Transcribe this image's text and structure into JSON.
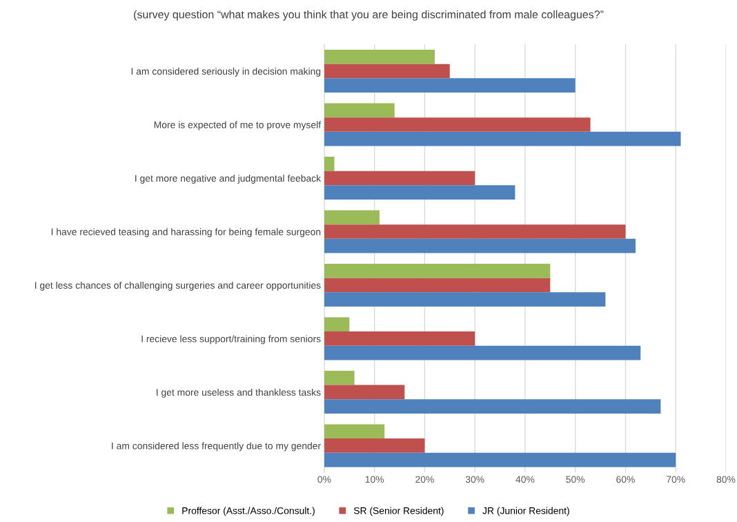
{
  "chart_data": {
    "type": "bar",
    "orientation": "horizontal",
    "title": "(survey question “what makes you think that you are being discriminated from male colleagues?”",
    "categories": [
      "I am considered seriously in decision making",
      "More is expected of me to prove myself",
      "I get more negative and judgmental feeback",
      "I have recieved teasing and harassing for being female surgeon",
      "I get less chances of challenging surgeries and career opportunities",
      "I recieve less support/training from seniors",
      "I get more useless and thankless tasks",
      "I am considered less frequently due to my gender"
    ],
    "series": [
      {
        "name": "Proffesor (Asst./Asso./Consult.)",
        "color": "#9bbb59",
        "values": [
          22,
          14,
          2,
          11,
          45,
          5,
          6,
          12
        ]
      },
      {
        "name": "SR (Senior Resident)",
        "color": "#c0504d",
        "values": [
          25,
          53,
          30,
          60,
          45,
          30,
          16,
          20
        ]
      },
      {
        "name": "JR (Junior Resident)",
        "color": "#4f81bd",
        "values": [
          50,
          71,
          38,
          62,
          56,
          63,
          67,
          70
        ]
      }
    ],
    "xlim": [
      0,
      80
    ],
    "xticks": [
      {
        "value": 0,
        "label": "0%"
      },
      {
        "value": 10,
        "label": "10%"
      },
      {
        "value": 20,
        "label": "20%"
      },
      {
        "value": 30,
        "label": "30%"
      },
      {
        "value": 40,
        "label": "40%"
      },
      {
        "value": 50,
        "label": "50%"
      },
      {
        "value": 60,
        "label": "60%"
      },
      {
        "value": 70,
        "label": "70%"
      },
      {
        "value": 80,
        "label": "80%"
      }
    ],
    "grid": "x",
    "legend": "bottom"
  }
}
